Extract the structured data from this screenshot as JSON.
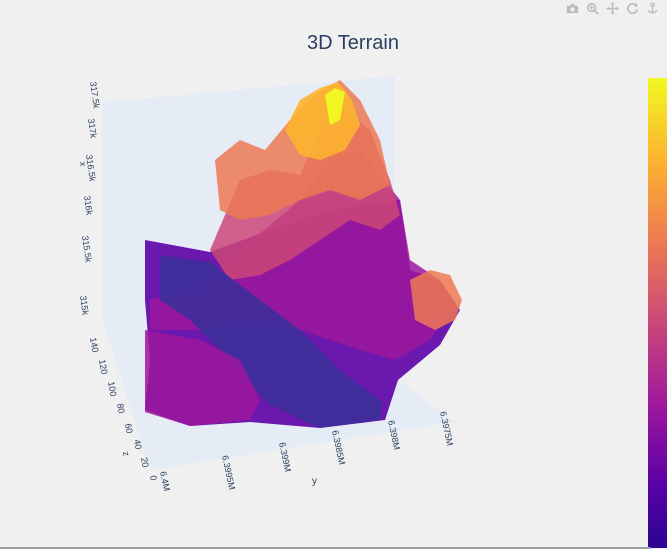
{
  "chart_data": {
    "type": "surface",
    "title": "3D Terrain",
    "axes": {
      "x": {
        "label": "x",
        "ticks": [
          "315k",
          "315.5k",
          "316k",
          "316.5k",
          "317k",
          "317.5k"
        ]
      },
      "y": {
        "label": "y",
        "ticks": [
          "6.4M",
          "6.3995M",
          "6.399M",
          "6.3985M",
          "6.398M",
          "6.3975M"
        ]
      },
      "z": {
        "label": "z",
        "ticks": [
          "0",
          "20",
          "40",
          "60",
          "80",
          "100",
          "120",
          "140"
        ]
      }
    },
    "z_range": [
      0,
      140
    ],
    "colorscale": "plasma",
    "colorbar_colors": [
      "#f0f921",
      "#fdb42f",
      "#ed7953",
      "#cc4778",
      "#9c179e",
      "#5c01a6",
      "#0d0887"
    ],
    "pane_color": "#e5ecf6"
  },
  "modebar": {
    "buttons": [
      {
        "name": "camera-icon"
      },
      {
        "name": "zoom-icon"
      },
      {
        "name": "pan-icon"
      },
      {
        "name": "orbit-icon"
      },
      {
        "name": "turntable-icon"
      }
    ]
  }
}
